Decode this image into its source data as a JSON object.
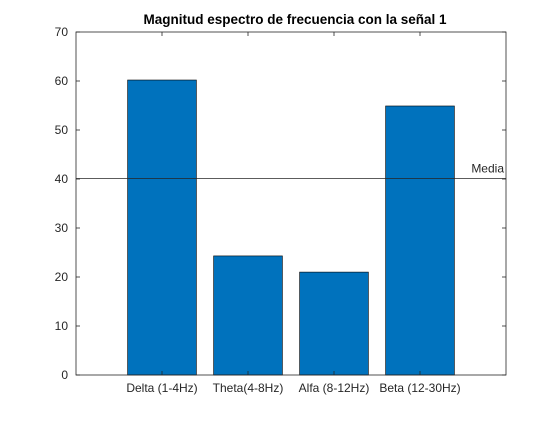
{
  "chart_data": {
    "type": "bar",
    "title": "Magnitud espectro de frecuencia con la señal 1",
    "xlabel": "",
    "ylabel": "",
    "categories": [
      "Delta (1-4Hz)",
      "Theta(4-8Hz)",
      "Alfa (8-12Hz)",
      "Beta (12-30Hz)"
    ],
    "values": [
      60.2,
      24.3,
      21.0,
      54.9
    ],
    "ylim": [
      0,
      70
    ],
    "yticks": [
      0,
      10,
      20,
      30,
      40,
      50,
      60,
      70
    ],
    "grid": false,
    "bar_color": "#0072BD",
    "reference_line": {
      "label": "Media",
      "value": 40.1
    }
  }
}
